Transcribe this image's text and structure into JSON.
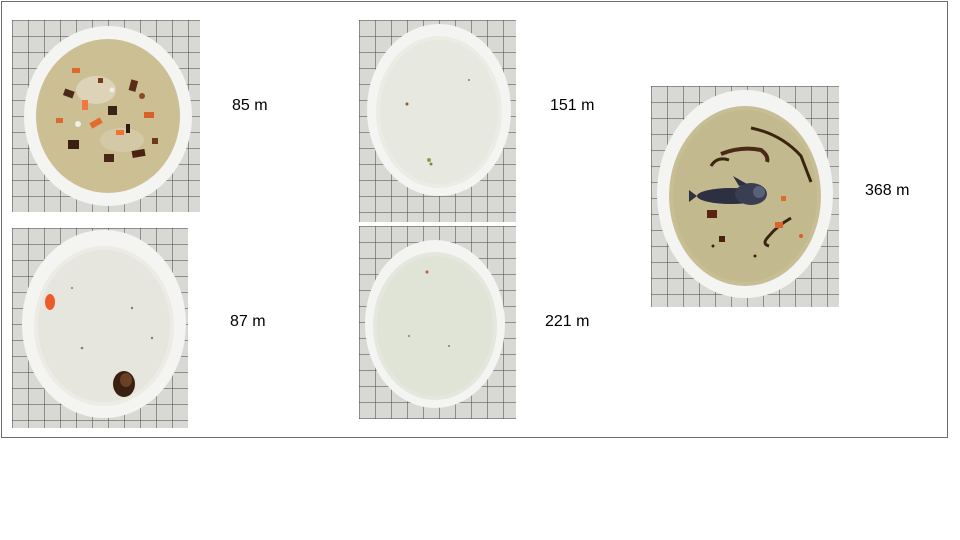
{
  "samples": [
    {
      "depth_label": "85 m",
      "filter_state": "dense sandy sediment with orange and dark brown fragments"
    },
    {
      "depth_label": "87 m",
      "filter_state": "mostly clean, one orange particle and one dark organism"
    },
    {
      "depth_label": "151 m",
      "filter_state": "nearly clean, few particles"
    },
    {
      "depth_label": "221 m",
      "filter_state": "nearly clean, faint greenish tint"
    },
    {
      "depth_label": "368 m",
      "filter_state": "sediment with dark fish larva and fibrous strands"
    }
  ],
  "colors": {
    "frame_border": "#6d6d6d",
    "filter_rim": "#f4f4f2",
    "sediment": "#cdbf94",
    "grid_lines": "#5a5a5a"
  }
}
